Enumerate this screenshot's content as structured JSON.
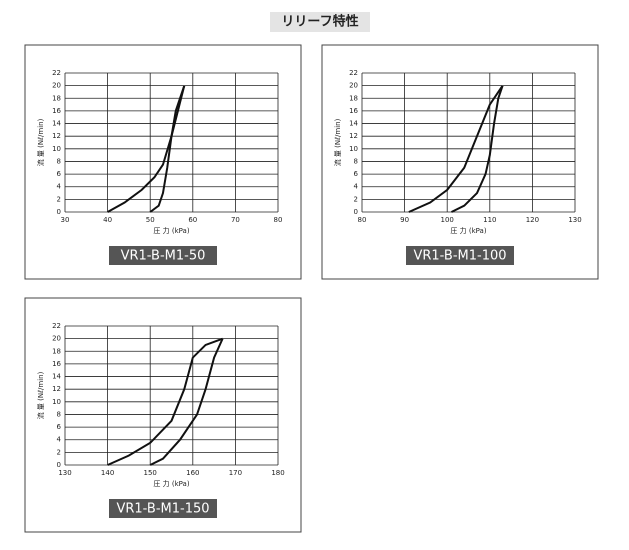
{
  "title": "リリーフ特性",
  "chart_data": [
    {
      "type": "line",
      "label": "VR1-B-M1-50",
      "xlabel": "圧 力 (kPa)",
      "ylabel": "流 量 (Nℓ/min)",
      "xlim": [
        30,
        80
      ],
      "xticks": [
        30,
        40,
        50,
        60,
        70,
        80
      ],
      "ylim": [
        0,
        22
      ],
      "yticks": [
        0,
        2,
        4,
        6,
        8,
        10,
        12,
        14,
        16,
        18,
        20,
        22
      ],
      "grid": true,
      "series": [
        {
          "color": "#111111",
          "x": [
            40,
            44,
            48,
            51,
            53,
            55,
            58
          ],
          "values": [
            0,
            1.5,
            3.5,
            5.5,
            7.5,
            12,
            20
          ]
        },
        {
          "color": "#111111",
          "x": [
            50,
            52,
            53,
            54,
            55,
            56,
            58
          ],
          "values": [
            0,
            1,
            3,
            7,
            12,
            16,
            20
          ]
        }
      ]
    },
    {
      "type": "line",
      "label": "VR1-B-M1-100",
      "xlabel": "圧 力 (kPa)",
      "ylabel": "流 量 (Nℓ/min)",
      "xlim": [
        80,
        130
      ],
      "xticks": [
        80,
        90,
        100,
        110,
        120,
        130
      ],
      "ylim": [
        0,
        22
      ],
      "yticks": [
        0,
        2,
        4,
        6,
        8,
        10,
        12,
        14,
        16,
        18,
        20,
        22
      ],
      "grid": true,
      "series": [
        {
          "color": "#111111",
          "x": [
            91,
            96,
            100,
            104,
            107,
            110,
            113
          ],
          "values": [
            0,
            1.5,
            3.5,
            7,
            12,
            17,
            20
          ]
        },
        {
          "color": "#111111",
          "x": [
            101,
            104,
            107,
            109,
            110,
            111,
            112,
            113
          ],
          "values": [
            0,
            1,
            3,
            6,
            9,
            14,
            18,
            20
          ]
        }
      ]
    },
    {
      "type": "line",
      "label": "VR1-B-M1-150",
      "xlabel": "圧 力 (kPa)",
      "ylabel": "流 量 (Nℓ/min)",
      "xlim": [
        130,
        180
      ],
      "xticks": [
        130,
        140,
        150,
        160,
        170,
        180
      ],
      "ylim": [
        0,
        22
      ],
      "yticks": [
        0,
        2,
        4,
        6,
        8,
        10,
        12,
        14,
        16,
        18,
        20,
        22
      ],
      "grid": true,
      "series": [
        {
          "color": "#111111",
          "x": [
            140,
            145,
            150,
            155,
            158,
            160,
            163,
            167
          ],
          "values": [
            0,
            1.5,
            3.5,
            7,
            12,
            17,
            19,
            20
          ]
        },
        {
          "color": "#111111",
          "x": [
            150,
            153,
            157,
            161,
            163,
            165,
            167
          ],
          "values": [
            0,
            1,
            4,
            8,
            12,
            17,
            20
          ]
        }
      ]
    }
  ]
}
